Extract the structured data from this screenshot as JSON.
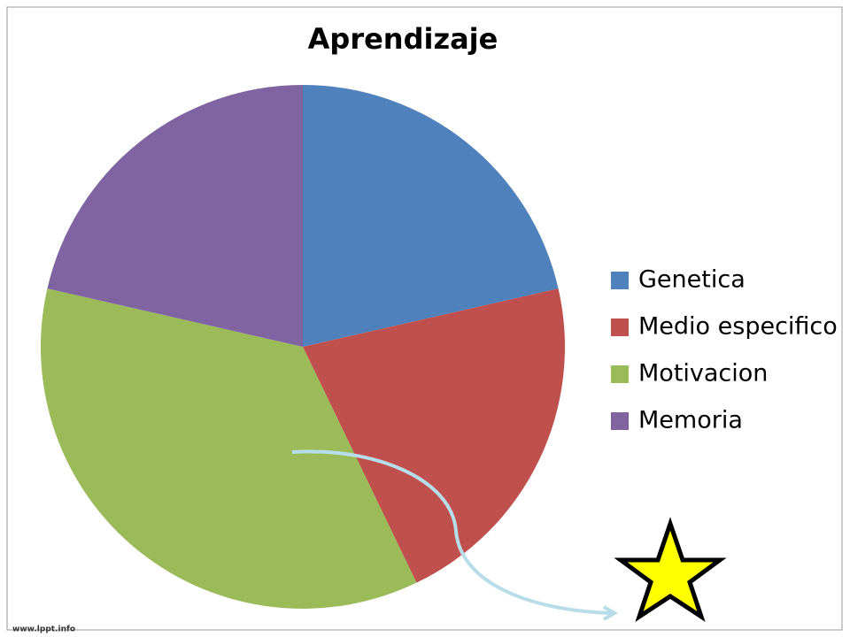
{
  "chart_data": {
    "type": "pie",
    "title": "Aprendizaje",
    "categories": [
      "Genetica",
      "Medio especifico",
      "Motivacion",
      "Memoria"
    ],
    "values": [
      3,
      3,
      5,
      3
    ],
    "colors": [
      "#4f81bd",
      "#c0504d",
      "#9bbb59",
      "#8064a2"
    ],
    "legend": "right"
  },
  "footer": "www.lppt.info"
}
